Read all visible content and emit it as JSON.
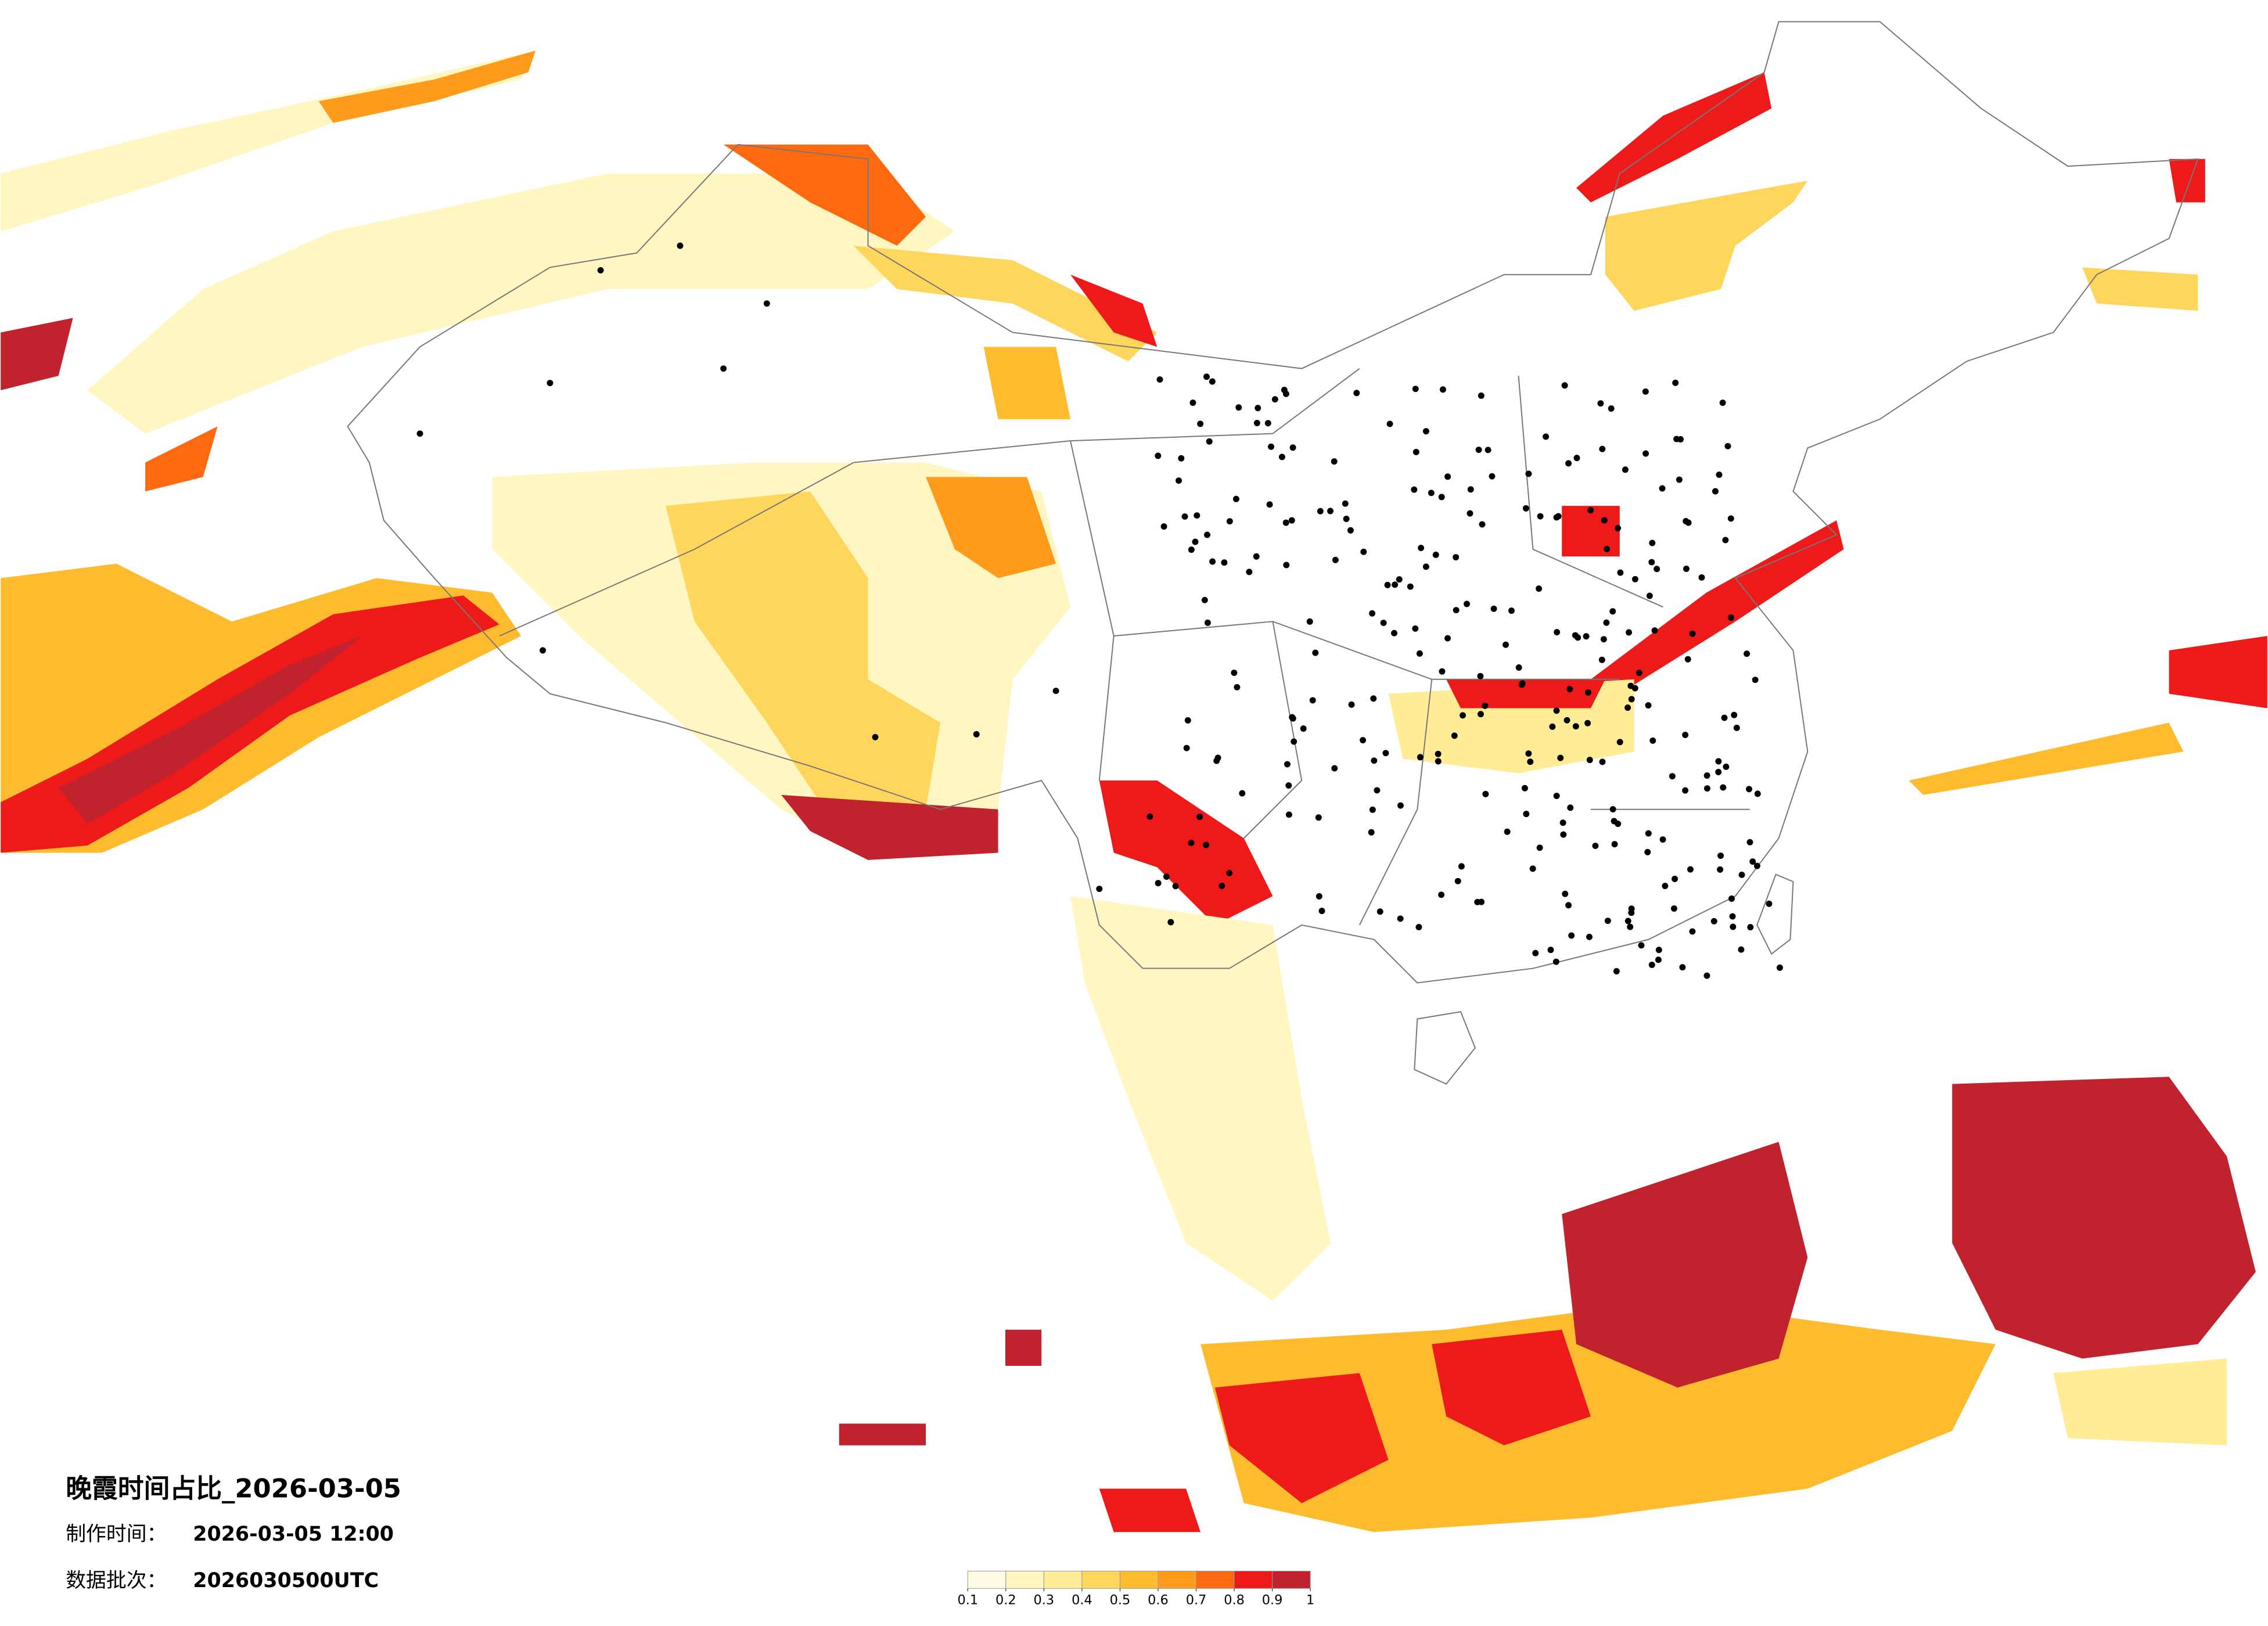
{
  "header": {
    "title": "晚霞时间占比_2026-03-05",
    "made_label": "制作时间：",
    "made_time": "2026-03-05 12:00",
    "batch_label": "数据批次：",
    "batch": "2026030500UTC"
  },
  "colorbar": {
    "ticks": [
      0.1,
      0.2,
      0.3,
      0.4,
      0.5,
      0.6,
      0.7,
      0.8,
      0.9,
      1
    ],
    "colors": [
      "#fffbe6",
      "#fff6c2",
      "#ffec94",
      "#ffd65c",
      "#ffbb2e",
      "#ff9a1a",
      "#ff6a10",
      "#ee1a1a",
      "#c0232d"
    ]
  }
}
